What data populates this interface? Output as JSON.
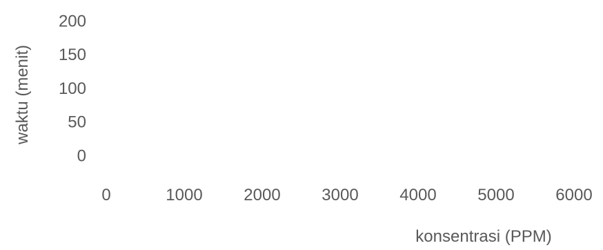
{
  "chart_data": {
    "type": "scatter",
    "title": "",
    "xlabel": "konsentrasi (PPM)",
    "ylabel": "waktu (menit)",
    "xlim": [
      0,
      6000
    ],
    "ylim": [
      0,
      200
    ],
    "x_ticks": [
      "0",
      "1000",
      "2000",
      "3000",
      "4000",
      "5000",
      "6000"
    ],
    "y_ticks": [
      "0",
      "50",
      "100",
      "150",
      "200"
    ],
    "grid": false,
    "legend": "none",
    "series": []
  },
  "colors": {
    "text": "#595959"
  }
}
